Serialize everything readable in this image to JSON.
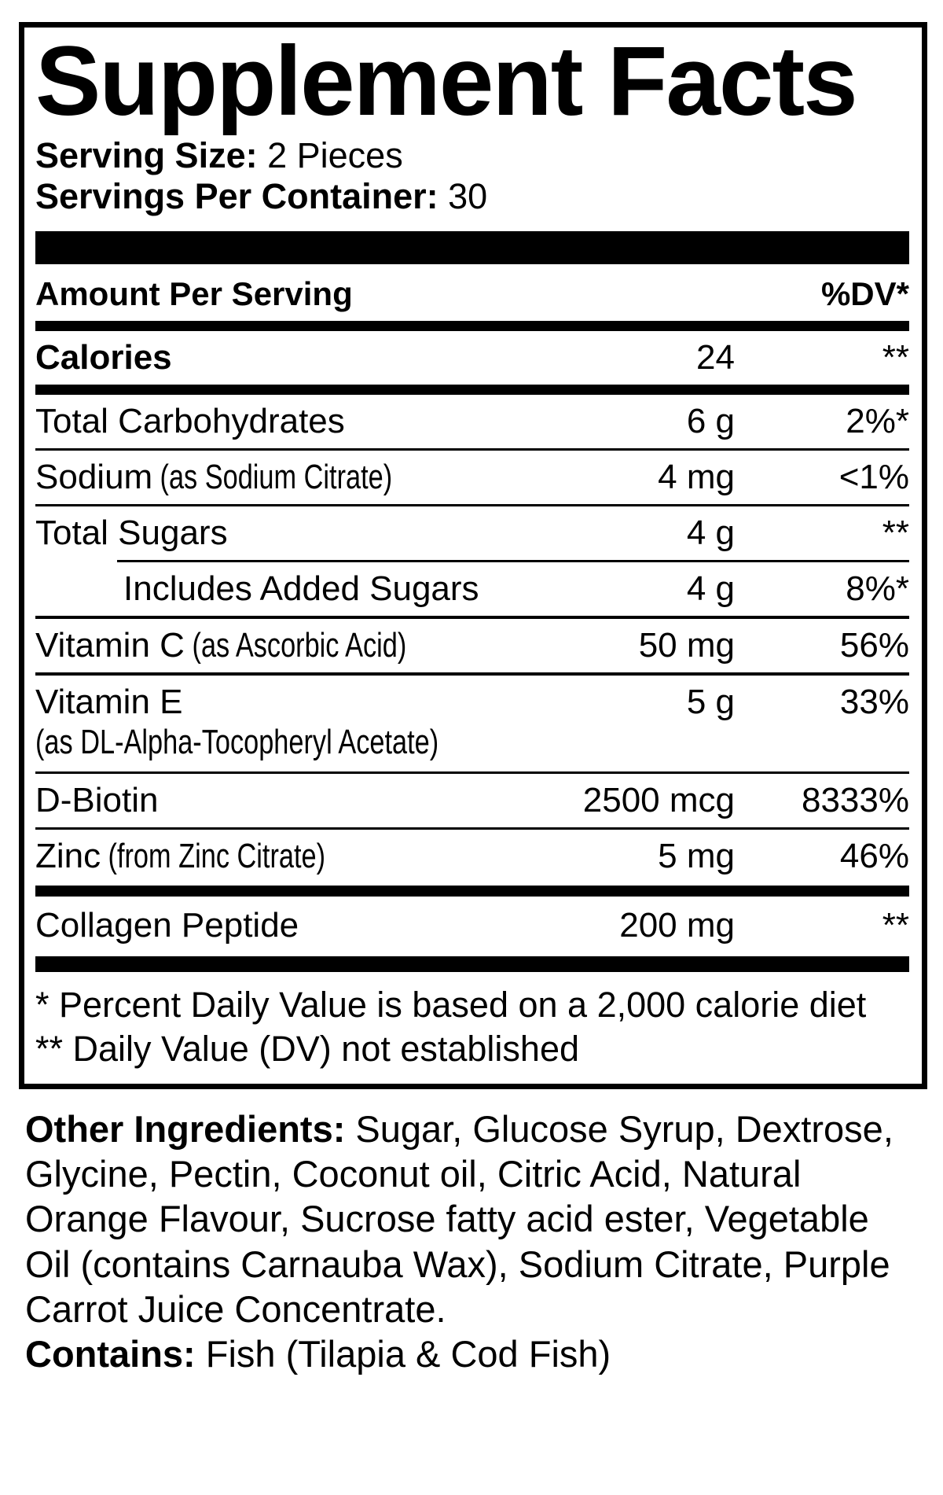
{
  "label": {
    "title": "Supplement Facts",
    "serving_size_label": "Serving Size:",
    "serving_size_value": " 2 Pieces",
    "servings_per_container_label": "Servings Per Container:",
    "servings_per_container_value": " 30",
    "amount_header": "Amount Per Serving",
    "dv_header": "%DV*"
  },
  "rows": [
    {
      "name": "Calories",
      "amount": "24",
      "dv": "**"
    },
    {
      "name": "Total Carbohydrates",
      "amount": "6 g",
      "dv": "2%*"
    },
    {
      "name": "Sodium",
      "note": " (as Sodium Citrate)",
      "amount": "4 mg",
      "dv": "<1%"
    },
    {
      "name": "Total Sugars",
      "amount": "4 g",
      "dv": "**"
    },
    {
      "name": "Includes Added Sugars",
      "amount": "4 g",
      "dv": "8%*"
    },
    {
      "name": "Vitamin C",
      "note": " (as Ascorbic Acid)",
      "amount": "50 mg",
      "dv": "56%"
    },
    {
      "name": "Vitamin E",
      "sub": "(as DL-Alpha-Tocopheryl Acetate)",
      "amount": "5 g",
      "dv": "33%"
    },
    {
      "name": "D-Biotin",
      "amount": "2500 mcg",
      "dv": "8333%"
    },
    {
      "name": "Zinc",
      "note": " (from Zinc Citrate)",
      "amount": "5 mg",
      "dv": "46%"
    },
    {
      "name": "Collagen Peptide",
      "amount": "200 mg",
      "dv": "**"
    }
  ],
  "footnotes": {
    "dv_note": "* Percent Daily Value is based on a 2,000 calorie diet",
    "not_established_note": "** Daily Value (DV) not established"
  },
  "other_ingredients": {
    "label": "Other Ingredients:",
    "text": " Sugar, Glucose Syrup, Dextrose, Glycine, Pectin, Coconut oil, Citric Acid, Natural Orange Flavour, Sucrose fatty acid ester, Vegetable Oil (contains Carnauba Wax), Sodium Citrate, Purple Carrot Juice Concentrate."
  },
  "contains": {
    "label": "Contains:",
    "text": " Fish (Tilapia & Cod Fish)"
  },
  "colors": {
    "ink": "#000000",
    "background": "#ffffff"
  }
}
